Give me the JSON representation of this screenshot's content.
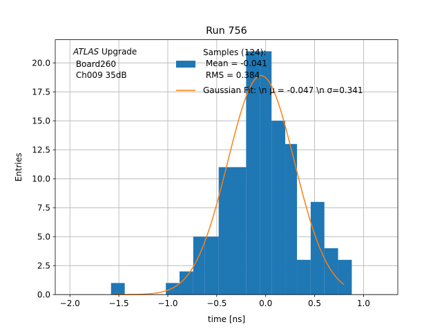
{
  "chart_data": {
    "type": "bar",
    "title": "Run 756",
    "xlabel": "time [ns]",
    "ylabel": "Entries",
    "xlim": [
      -2.15,
      1.35
    ],
    "ylim": [
      0,
      22
    ],
    "xticks": [
      -2.0,
      -1.5,
      -1.0,
      -0.5,
      0.0,
      0.5,
      1.0
    ],
    "xtick_labels": [
      "−2.0",
      "−1.5",
      "−1.0",
      "−0.5",
      "0.0",
      "0.5",
      "1.0"
    ],
    "yticks": [
      0,
      2.5,
      5,
      7.5,
      10,
      12.5,
      15,
      17.5,
      20
    ],
    "ytick_labels": [
      "0.0",
      "2.5",
      "5.0",
      "7.5",
      "10.0",
      "12.5",
      "15.0",
      "17.5",
      "20.0"
    ],
    "grid": true,
    "annotation": {
      "italic": "ATLAS",
      "line1": " Upgrade",
      "line2": " Board260",
      "line3": " Ch009 35dB"
    },
    "histogram": {
      "name": "Samples (124):",
      "stat_lines": [
        " Mean = -0.041",
        " RMS = 0.384"
      ],
      "color": "#1f77b4",
      "bin_edges": [
        -1.58,
        -1.44,
        -1.3,
        -1.16,
        -1.02,
        -0.88,
        -0.74,
        -0.62,
        -0.48,
        -0.34,
        -0.2,
        -0.06,
        0.06,
        0.2,
        0.32,
        0.46,
        0.6,
        0.74,
        0.88
      ],
      "counts": [
        1,
        0,
        0,
        0,
        1,
        2,
        5,
        5,
        11,
        11,
        21,
        21,
        15,
        13,
        3,
        8,
        4,
        3
      ]
    },
    "fit": {
      "label": "Gaussian Fit: \\n μ = -0.047 \\n σ=0.341",
      "color": "#ff7f0e",
      "mu": -0.047,
      "sigma": 0.341,
      "amplitude": 18.9,
      "x_range": [
        -1.55,
        0.8
      ]
    },
    "legend_position": "upper-right"
  }
}
